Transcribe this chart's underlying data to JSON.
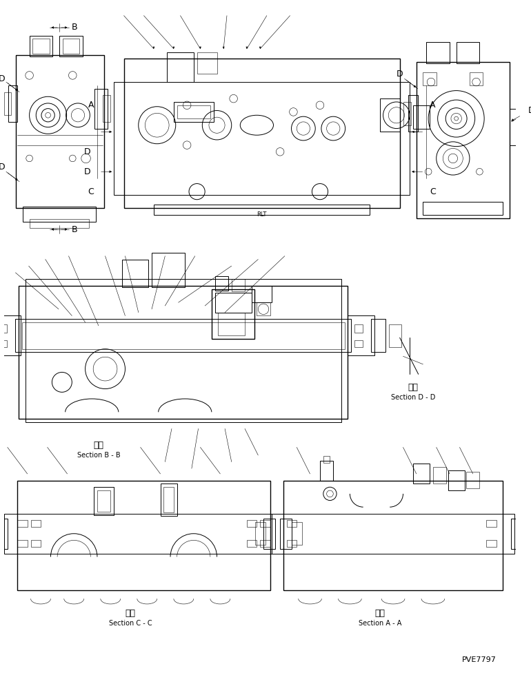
{
  "background_color": "#ffffff",
  "line_color": "#000000",
  "fig_width": 7.7,
  "fig_height": 9.96,
  "dpi": 100,
  "watermark": "PVE7797",
  "sections": {
    "bb_label": [
      "断面",
      "Section B - B"
    ],
    "dd_label": [
      "断面",
      "Section D - D"
    ],
    "cc_label": [
      "断面",
      "Section C - C"
    ],
    "aa_label": [
      "断面",
      "Section A - A"
    ]
  },
  "dim_letters": [
    "B",
    "B",
    "D",
    "D",
    "A",
    "A",
    "C",
    "C",
    "D",
    "D"
  ],
  "font_sizes": {
    "section": 7,
    "kanji": 8,
    "dim": 9,
    "watermark": 8
  }
}
